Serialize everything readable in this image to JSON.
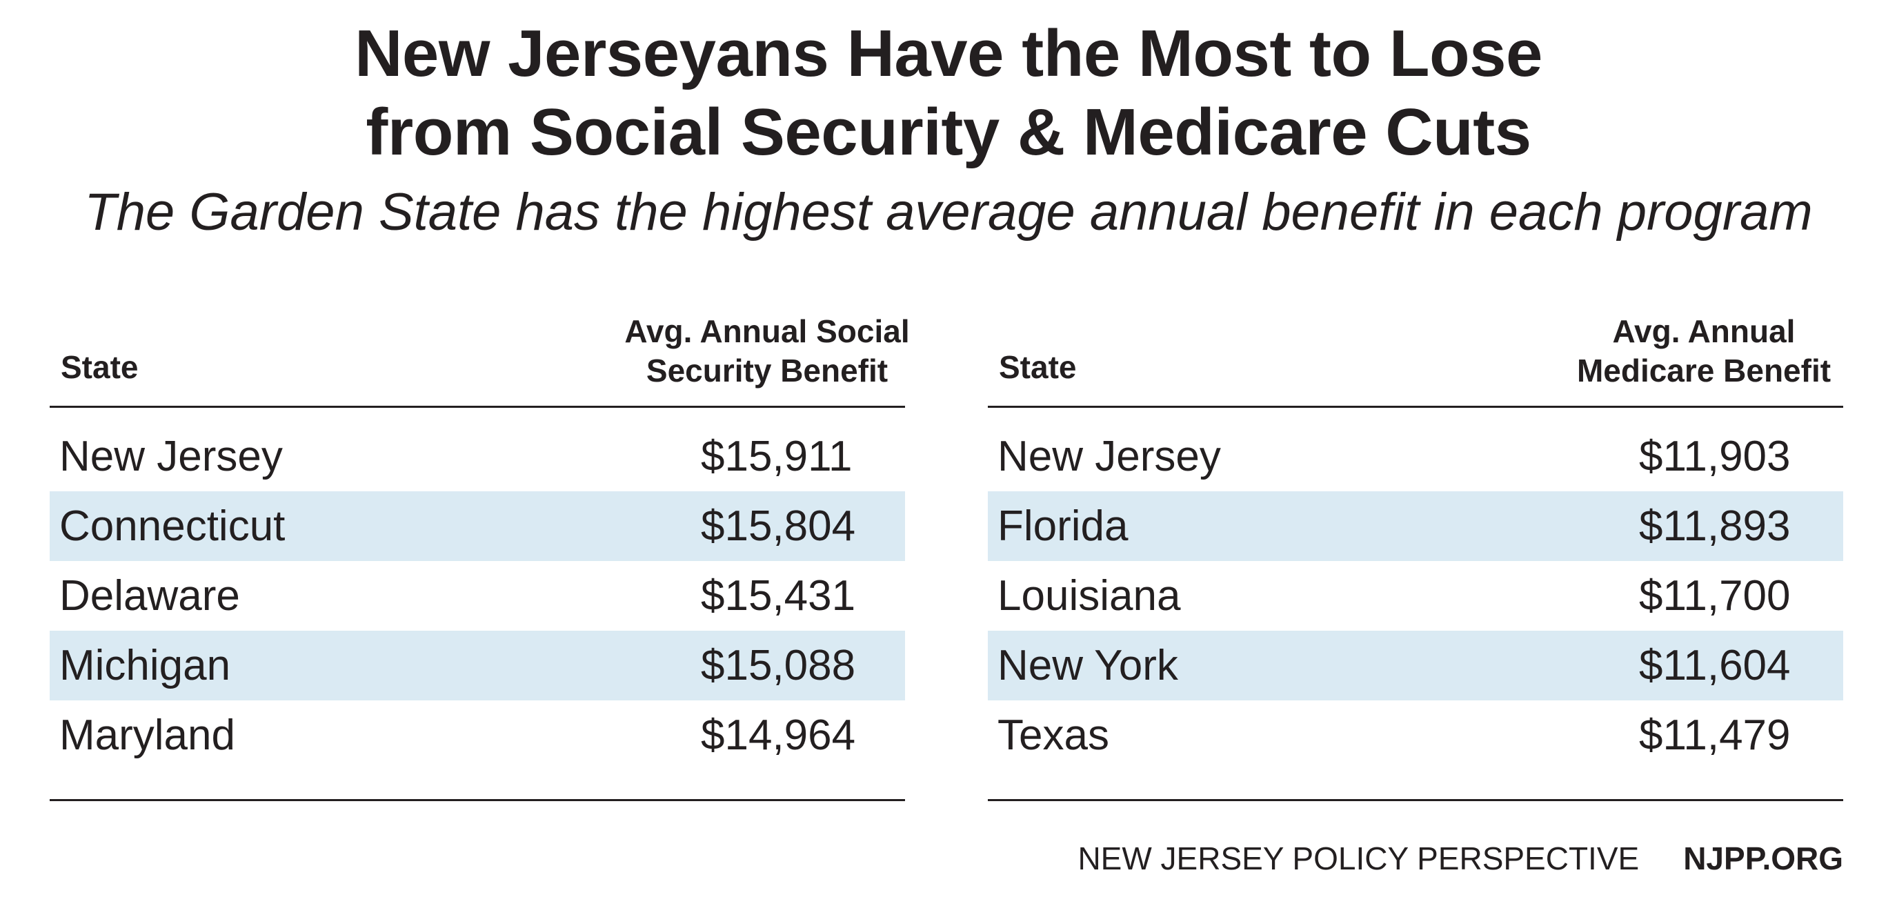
{
  "title_line1": "New Jerseyans Have the Most to Lose",
  "title_line2": "from Social Security & Medicare Cuts",
  "subtitle": "The Garden State has the highest average annual benefit in each program",
  "chart_data": [
    {
      "type": "table",
      "columns": [
        "State",
        "Avg. Annual Social Security Benefit"
      ],
      "header": {
        "state": "State",
        "value_line1": "Avg. Annual Social",
        "value_line2": "Security Benefit"
      },
      "rows": [
        {
          "state": "New Jersey",
          "value": "$15,911"
        },
        {
          "state": "Connecticut",
          "value": "$15,804"
        },
        {
          "state": "Delaware",
          "value": "$15,431"
        },
        {
          "state": "Michigan",
          "value": "$15,088"
        },
        {
          "state": "Maryland",
          "value": "$14,964"
        }
      ]
    },
    {
      "type": "table",
      "columns": [
        "State",
        "Avg. Annual Medicare Benefit"
      ],
      "header": {
        "state": "State",
        "value_line1": "Avg. Annual",
        "value_line2": "Medicare Benefit"
      },
      "rows": [
        {
          "state": "New Jersey",
          "value": "$11,903"
        },
        {
          "state": "Florida",
          "value": "$11,893"
        },
        {
          "state": "Louisiana",
          "value": "$11,700"
        },
        {
          "state": "New York",
          "value": "$11,604"
        },
        {
          "state": "Texas",
          "value": "$11,479"
        }
      ]
    }
  ],
  "colors": {
    "text": "#231f20",
    "row_shade": "#daeaf3",
    "background": "#ffffff"
  },
  "footer": {
    "org": "NEW JERSEY POLICY PERSPECTIVE",
    "site": "NJPP.ORG"
  }
}
